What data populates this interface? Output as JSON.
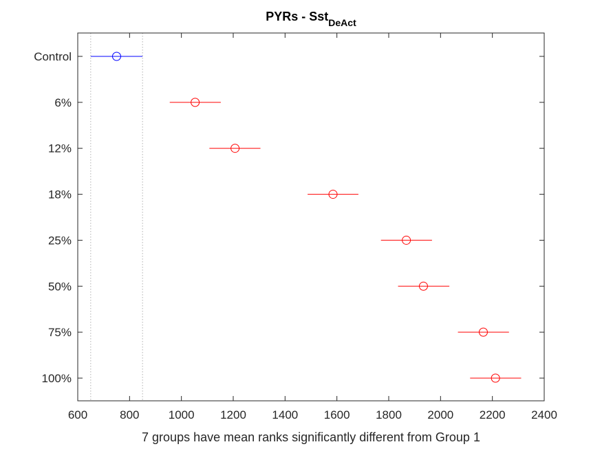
{
  "chart_data": {
    "type": "scatter",
    "title": "PYRs - Sst",
    "title_subscript": "DeAct",
    "xlabel": "7 groups have mean ranks significantly different from Group 1",
    "ylabel": "",
    "xlim": [
      600,
      2400
    ],
    "xticks": [
      600,
      800,
      1000,
      1200,
      1400,
      1600,
      1800,
      2000,
      2200,
      2400
    ],
    "grid": false,
    "reference_lines": [
      650,
      850
    ],
    "colors": {
      "reference": "#0000ff",
      "significant": "#ff0000"
    },
    "groups": [
      {
        "label": "Control",
        "mean": 750,
        "low": 650,
        "high": 850,
        "color": "#0000ff"
      },
      {
        "label": "6%",
        "mean": 1053,
        "low": 955,
        "high": 1152,
        "color": "#ff0000"
      },
      {
        "label": "12%",
        "mean": 1207,
        "low": 1108,
        "high": 1305,
        "color": "#ff0000"
      },
      {
        "label": "18%",
        "mean": 1585,
        "low": 1487,
        "high": 1683,
        "color": "#ff0000"
      },
      {
        "label": "25%",
        "mean": 1868,
        "low": 1770,
        "high": 1967,
        "color": "#ff0000"
      },
      {
        "label": "50%",
        "mean": 1934,
        "low": 1836,
        "high": 2034,
        "color": "#ff0000"
      },
      {
        "label": "75%",
        "mean": 2165,
        "low": 2067,
        "high": 2264,
        "color": "#ff0000"
      },
      {
        "label": "100%",
        "mean": 2212,
        "low": 2114,
        "high": 2311,
        "color": "#ff0000"
      }
    ]
  }
}
